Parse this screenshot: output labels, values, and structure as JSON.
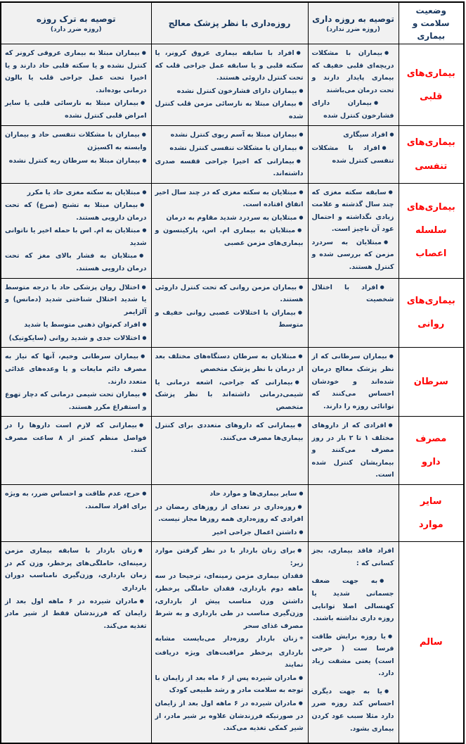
{
  "colors": {
    "label_red": "#ff0000",
    "text_navy": "#17365d",
    "cell_bg": "#f1f1f1",
    "border_black": "#000000"
  },
  "header": {
    "status": {
      "line1": "وضعیت",
      "line2": "سلامت و بیماری"
    },
    "fast": {
      "title": "توصیه به روزه داری",
      "subtitle": "(روزه ضرر ندارد)"
    },
    "doctor": {
      "title": "روزه‌داری با نظر پزشک معالج"
    },
    "quit": {
      "title": "توصیه به ترک روزه",
      "subtitle": "(روزه ضرر دارد)"
    }
  },
  "rows": [
    {
      "label": "بیماری‌های\nقلبی",
      "fast": [
        "بیماران با مشکلات دریچه‌ای قلبی خفیف که بیماری پایدار دارند و تحت درمان می‌باشند",
        "بیماران دارای فشارخون کنترل شده"
      ],
      "doctor": [
        "افراد با سابقه بیماری عروق کرونر، یا سکته قلبی و یا سابقه عمل جراحی قلب که تحت کنترل داروئی هستند.",
        "بیماران دارای فشارخون کنترل نشده",
        "بیماران مبتلا به نارسائی مزمن قلب کنترل شده"
      ],
      "quit": [
        "بیماران مبتلا به بیماری عروقی کرونر که کنترل نشده و یا سکته قلبی حاد دارند و یا اخیرا تحت عمل جراحی قلب یا بالون درمانی بوده‌اند.",
        "بیماران مبتلا به نارسائی قلبی یا سایر امراض قلبی کنترل نشده"
      ]
    },
    {
      "label": "بیماری‌های\nتنفسی",
      "fast": [
        "افراد سیگاری",
        "افراد با مشکلات تنفسی کنترل شده"
      ],
      "doctor": [
        "بیماران مبتلا به آسم ریوی کنترل نشده",
        "بیماران با مشکلات تنفسی کنترل نشده",
        "بیمارانی که اخیرا جراحی قفسه صدری داشته‌اند."
      ],
      "quit": [
        "بیماران با مشکلات تنفسی حاد و بیماران وابسته به اکسیژن",
        "بیماران مبتلا به سرطان ریه کنترل نشده"
      ]
    },
    {
      "label": "بیماری‌های\nسلسله\nاعصاب",
      "fast": [
        "سابقه سکته مغزی که چند سال گذشته و علامت زیادی نگذاشته و احتمال عود آن ناچیز است.",
        "مبتلایان به سردرد مزمن که بررسی شده و کنترل هستند."
      ],
      "doctor": [
        "مبتلایان به سکته مغزی که در چند سال اخیر اتفاق افتاده است.",
        "مبتلایان به سردرد شدید مقاوم به درمان",
        "مبتلایان به بیماری ام. اس، پارکینسون و بیماری‌های مزمن عصبی"
      ],
      "quit": [
        "مبتلایان به سکته مغزی حاد یا مکرر",
        "بیماران مبتلا به تشنج (صرع) که تحت درمان دارویی هستند.",
        "مبتلایان به ام. اس با حمله اخیر یا ناتوانی شدید",
        "مبتلایان به فشار بالای مغز که تحت درمان دارویی هستند."
      ]
    },
    {
      "label": "بیماری‌های\nروانی",
      "fast": [
        "افراد با اختلال شخصیت"
      ],
      "doctor": [
        "بیماران مزمن روانی که تحت کنترل داروئی هستند.",
        "بیماران با اختلالات عصبی روانی خفیف و متوسط"
      ],
      "quit": [
        "اختلال روان پزشکی حاد با درجه متوسط یا شدید اختلال شناختی شدید (دمانس) و آلزایمر",
        "افراد کم‌توان ذهنی متوسط یا شدید",
        "اختلالات جدی و شدید روانی (سایکوتیک)"
      ]
    },
    {
      "label": "سرطان",
      "fast": [
        "بیماران سرطانی که از نظر پزشک معالج درمان شده‌اند و خودشان احساس می‌کنند که توانائی روزه را دارند."
      ],
      "doctor": [
        "مبتلایان به سرطان دستگاه‌های مختلف بعد از درمان با نظر پزشک متخصص",
        "بیمارانی که جراحی، اشعه درمانی یا شیمی‌درمانی داشته‌اند با نظر پزشک متخصص"
      ],
      "quit": [
        "بیماران سرطانی وخیم، آنها که نیاز به مصرف دائم مایعات و یا وعده‌های غذائی متعدد دارند.",
        "بیماران تحت شیمی درمانی که دچار تهوع و استفراغ مکرر هستند."
      ]
    },
    {
      "label": "مصرف\nدارو",
      "fast": [
        "افرادی که از داروهای مختلف ۱ تا ۲ بار در روز مصرف می‌کنند و بیماریشان کنترل شده است."
      ],
      "doctor": [
        "بیمارانی که داروهای متعددی برای کنترل بیماری‌ها مصرف می‌کنند."
      ],
      "quit": [
        "بیمارانی که لازم است داروها را در فواصل منظم کمتر از ۸ ساعت مصرف کنند."
      ]
    },
    {
      "label": "سایر\nموارد",
      "fast": [],
      "doctor": [
        "سایر بیماری‌ها و موارد حاد",
        "روزه‌داری در تعدای از روزهای رمضان در افرادی که روزه‌داری همه روزها مجاز نیست.",
        "داشتن اعمال جراحی اخیر"
      ],
      "quit": [
        "حرج، عدم طاقت و احساس ضرر، به ویژه برای افراد سالمند."
      ]
    },
    {
      "label": "سالم",
      "fast": [
        {
          "b": "none",
          "t": "افراد فاقد بیماری، بجز کسانی که :"
        },
        "به جهت ضعف جسمانی شدید یا کهنسالی اصلا توانایی روزه داری نداشته باشند.",
        "یا روزه برایش طاقت فرسا ست ( حرجی است) یعنی مشقت زیاد دارد.",
        "یا به جهت دیگری احساس کند روزه ضرر دارد مثلا سبب عود کردن بیماری بشود."
      ],
      "doctor": [
        "برای زنان باردار با در نظر گرفتن موارد زیر:",
        {
          "b": "none",
          "t": "فقدان بیماری مزمن زمینه‌ای، ترجیحا در سه ماهه دوم بارداری، فقدان حاملگی پرخطر، داشتن وزن مناسب پیش از بارداری، وزن‌گیری مناسب در طی بارداری و به شرط مصرف غذای سحر"
        },
        {
          "b": "star",
          "t": "زنان باردار روزه‌دار می‌بایست مشابه بارداری پرخطر مراقبت‌های ویژه دریافت نمایند"
        },
        "مادران شیرده پس از ۶ ماه بعد از زایمان با توجه به سلامت مادر و رشد طبیعی کودک",
        "مادران شیرده در ۶ ماهه اول بعد از زایمان در صورتیکه فرزندشان علاوه بر شیر مادر، از شیر کمکی تغذیه می‌کند."
      ],
      "quit": [
        "زنان باردار با سابقه بیماری مزمن زمینه‌ای، حاملگی‌های پرخطر، وزن کم در زمان بارداری، وزن‌گیری نامناسب دوران بارداری",
        "مادران شیرده در ۶ ماهه اول بعد از زایمان که فرزندشان فقط از شیر مادر تغذیه می‌کند."
      ]
    }
  ]
}
